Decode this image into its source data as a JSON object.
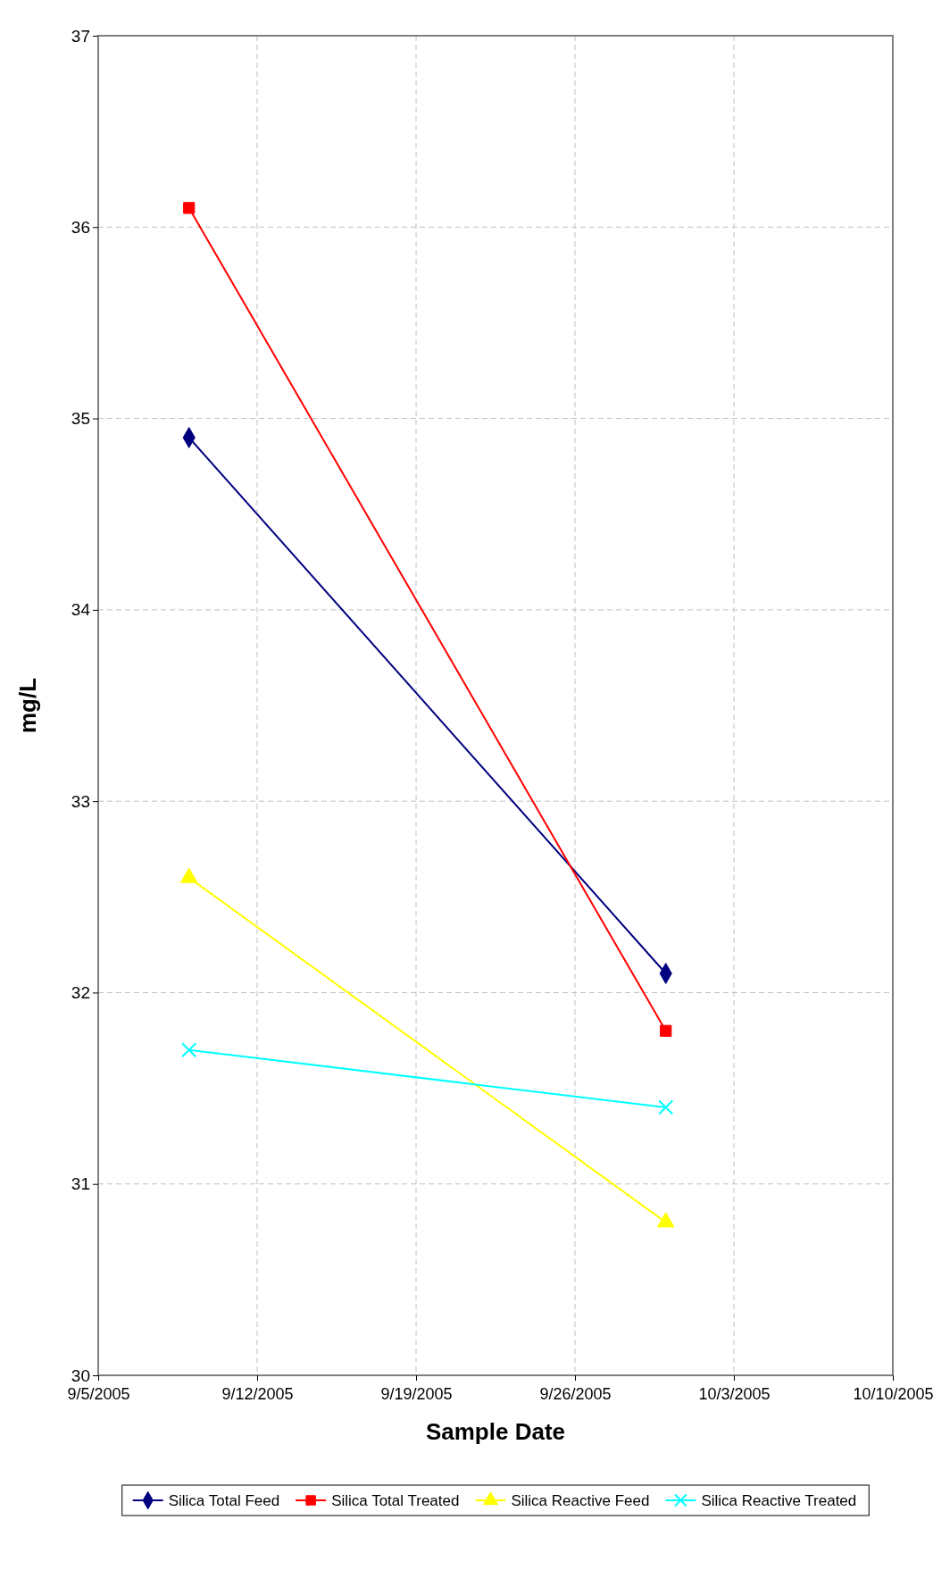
{
  "chart_data": {
    "type": "line",
    "xlabel": "Sample Date",
    "ylabel": "mg/L",
    "x": [
      "2005-09-09",
      "2005-09-30"
    ],
    "series": [
      {
        "name": "Silica Total Feed",
        "color": "#000080",
        "marker": "diamond",
        "values": [
          34.9,
          32.1
        ]
      },
      {
        "name": "Silica Total Treated",
        "color": "#ff0000",
        "marker": "square",
        "values": [
          36.1,
          31.8
        ]
      },
      {
        "name": "Silica Reactive Feed",
        "color": "#ffff00",
        "marker": "triangle",
        "values": [
          32.6,
          30.8
        ]
      },
      {
        "name": "Silica Reactive Treated",
        "color": "#00ffff",
        "marker": "cross",
        "values": [
          31.7,
          31.4
        ]
      }
    ],
    "xlim": [
      "2005-09-05",
      "2005-10-10"
    ],
    "xticks": [
      {
        "value": "2005-09-05",
        "label": "9/5/2005"
      },
      {
        "value": "2005-09-12",
        "label": "9/12/2005"
      },
      {
        "value": "2005-09-19",
        "label": "9/19/2005"
      },
      {
        "value": "2005-09-26",
        "label": "9/26/2005"
      },
      {
        "value": "2005-10-03",
        "label": "10/3/2005"
      },
      {
        "value": "2005-10-10",
        "label": "10/10/2005"
      }
    ],
    "ylim": [
      30,
      37
    ],
    "yticks": [
      30,
      31,
      32,
      33,
      34,
      35,
      36,
      37
    ],
    "grid": true,
    "legend": "bottom"
  }
}
